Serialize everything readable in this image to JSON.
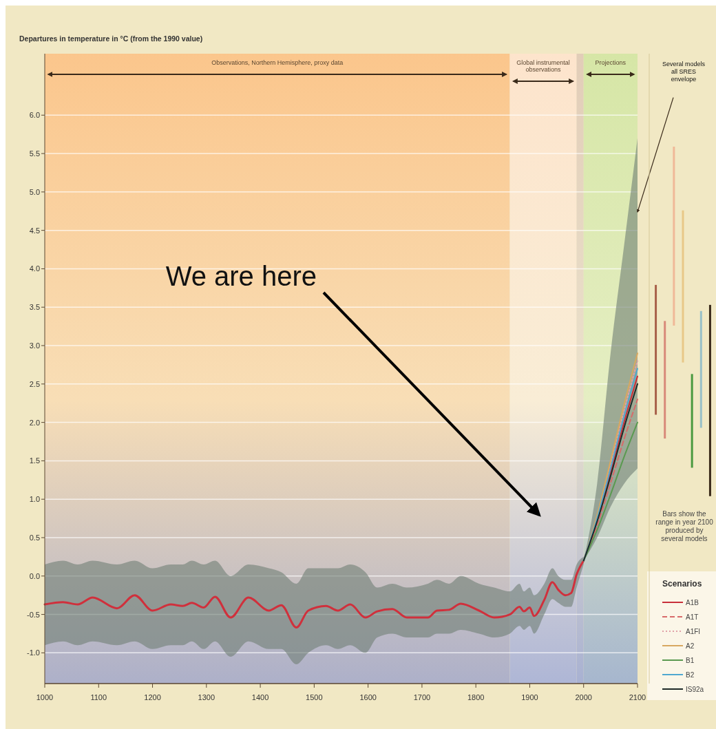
{
  "chart_data": [
    {
      "type": "line",
      "ylabel": "Departures in temperature in °C (from the 1990 value)",
      "xlim": [
        1000,
        2100
      ],
      "ylim": [
        -1.4,
        6.8
      ],
      "xticks": [
        1000,
        1100,
        1200,
        1300,
        1400,
        1500,
        1600,
        1700,
        1800,
        1900,
        2000,
        2100
      ],
      "yticks": [
        {
          "value": -1,
          "label": "-1.0"
        },
        {
          "value": -0.5,
          "label": "-0.5"
        },
        {
          "value": 0,
          "label": "0.0"
        },
        {
          "value": 0.5,
          "label": "0.5"
        },
        {
          "value": 1,
          "label": "1.0"
        },
        {
          "value": 1.5,
          "label": "1.5"
        },
        {
          "value": 2,
          "label": "2.0"
        },
        {
          "value": 2.5,
          "label": "2.5"
        },
        {
          "value": 3,
          "label": "3.0"
        },
        {
          "value": 3.5,
          "label": "3.5"
        },
        {
          "value": 4,
          "label": "4.0"
        },
        {
          "value": 4.5,
          "label": "4.5"
        },
        {
          "value": 5,
          "label": "5.0"
        },
        {
          "value": 5.5,
          "label": "5.5"
        },
        {
          "value": 6,
          "label": "6.0"
        }
      ],
      "grid": "y",
      "legend": "bottom right",
      "legend_title": "Scenarios",
      "bands": [
        {
          "axis": "x",
          "from": 1000,
          "to": 1863,
          "label": "Observations, Northern Hemisphere, proxy data",
          "color": "#fbc68c"
        },
        {
          "axis": "x",
          "from": 1863,
          "to": 1987,
          "label": "Global instrumental observations",
          "color": "#fde4cc"
        },
        {
          "axis": "x",
          "from": 1987,
          "to": 2000,
          "color": "#e2cdb8"
        },
        {
          "axis": "x",
          "from": 2000,
          "to": 2100,
          "label": "Projections",
          "color": "#d6e6a6"
        }
      ],
      "series": [
        {
          "color": "#d0303c",
          "x": [
            1000,
            1034,
            1061,
            1089,
            1134,
            1167,
            1200,
            1234,
            1256,
            1273,
            1295,
            1316,
            1345,
            1378,
            1416,
            1439,
            1467,
            1489,
            1522,
            1544,
            1567,
            1595,
            1617,
            1645,
            1672,
            1711,
            1728,
            1750,
            1772,
            1806,
            1834,
            1863,
            1881,
            1889,
            1900,
            1908,
            1927,
            1942,
            1953,
            1966,
            1977,
            1987,
            2000
          ],
          "values": [
            -0.37,
            -0.34,
            -0.37,
            -0.28,
            -0.42,
            -0.25,
            -0.45,
            -0.37,
            -0.39,
            -0.35,
            -0.41,
            -0.27,
            -0.54,
            -0.28,
            -0.45,
            -0.38,
            -0.67,
            -0.45,
            -0.39,
            -0.45,
            -0.37,
            -0.54,
            -0.46,
            -0.43,
            -0.54,
            -0.54,
            -0.45,
            -0.44,
            -0.36,
            -0.45,
            -0.54,
            -0.5,
            -0.4,
            -0.46,
            -0.41,
            -0.52,
            -0.31,
            -0.08,
            -0.18,
            -0.25,
            -0.22,
            0.02,
            0.2
          ],
          "upper": [
            0.15,
            0.2,
            0.15,
            0.2,
            0.15,
            0.2,
            0.1,
            0.15,
            0.15,
            0.2,
            0.15,
            0.2,
            0.0,
            0.15,
            0.1,
            0.05,
            -0.1,
            0.1,
            0.1,
            0.1,
            0.15,
            0.05,
            -0.15,
            -0.1,
            -0.15,
            -0.1,
            -0.05,
            -0.1,
            0.0,
            -0.1,
            -0.15,
            -0.2,
            -0.1,
            -0.2,
            -0.15,
            -0.25,
            -0.1,
            0.1,
            0.0,
            -0.05,
            -0.05,
            0.15,
            0.25
          ],
          "lower": [
            -0.9,
            -0.85,
            -0.9,
            -0.85,
            -0.9,
            -0.85,
            -0.95,
            -0.9,
            -0.9,
            -0.85,
            -0.95,
            -0.85,
            -1.05,
            -0.85,
            -0.95,
            -0.95,
            -1.15,
            -1.0,
            -0.9,
            -0.95,
            -0.9,
            -1.0,
            -0.8,
            -0.75,
            -0.8,
            -0.8,
            -0.75,
            -0.75,
            -0.7,
            -0.75,
            -0.8,
            -0.75,
            -0.65,
            -0.7,
            -0.65,
            -0.75,
            -0.5,
            -0.3,
            -0.35,
            -0.4,
            -0.4,
            -0.15,
            0.15
          ]
        },
        {
          "name": "A1B",
          "color": "#c8303a",
          "x": [
            2000,
            2025,
            2050,
            2075,
            2100
          ],
          "values": [
            0.2,
            0.73,
            1.35,
            2.0,
            2.6
          ],
          "upper": [
            0.2,
            1.2,
            2.9,
            4.3,
            5.7
          ],
          "lower": [
            0.2,
            0.5,
            0.9,
            1.2,
            1.4
          ]
        },
        {
          "name": "A1T",
          "color": "#d86a6a",
          "line_style": "dashed",
          "x": [
            2000,
            2025,
            2050,
            2075,
            2100
          ],
          "values": [
            0.2,
            0.66,
            1.21,
            1.78,
            2.3
          ]
        },
        {
          "name": "A1FI",
          "color": "#e0a0a8",
          "line_style": "dotted",
          "x": [
            2000,
            2025,
            2050,
            2075,
            2100
          ],
          "values": [
            0.2,
            0.77,
            1.45,
            2.15,
            2.8
          ]
        },
        {
          "name": "A2",
          "color": "#d8a860",
          "x": [
            2000,
            2025,
            2050,
            2075,
            2100
          ],
          "values": [
            0.2,
            0.79,
            1.5,
            2.23,
            2.9
          ]
        },
        {
          "name": "B1",
          "color": "#5a9a50",
          "x": [
            2000,
            2025,
            2050,
            2075,
            2100
          ],
          "values": [
            0.2,
            0.6,
            1.06,
            1.55,
            2.0
          ]
        },
        {
          "name": "B2",
          "color": "#50a8d0",
          "x": [
            2000,
            2025,
            2050,
            2075,
            2100
          ],
          "values": [
            0.2,
            0.75,
            1.4,
            2.08,
            2.7
          ]
        },
        {
          "name": "IS92a",
          "color": "#1e2a28",
          "x": [
            2000,
            2025,
            2050,
            2075,
            2100
          ],
          "values": [
            0.2,
            0.71,
            1.3,
            1.93,
            2.5
          ]
        }
      ],
      "annotations": [
        "We are here",
        "Several models all SRES envelope"
      ]
    },
    {
      "type": "bar",
      "categories": [
        null,
        null,
        null,
        null,
        null,
        null,
        null
      ],
      "ylim": [
        -1.4,
        6.8
      ],
      "base": [
        2.1,
        1.79,
        3.26,
        2.78,
        1.41,
        1.93,
        1.04
      ],
      "values": [
        1.69,
        1.53,
        2.33,
        1.98,
        1.22,
        1.52,
        2.49
      ],
      "colors": [
        "#a8604a",
        "#d88a7a",
        "#f0b898",
        "#e8c888",
        "#4a9a40",
        "#98c0c8",
        "#3a2a1a"
      ],
      "annotations": [
        "Bars show the range in year 2100 produced by several models"
      ]
    }
  ]
}
